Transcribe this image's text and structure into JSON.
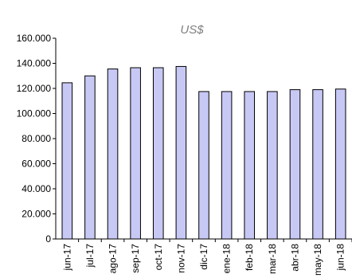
{
  "chart_data": {
    "type": "bar",
    "title": "US$",
    "xlabel": "",
    "ylabel": "",
    "categories": [
      "jun-17",
      "jul-17",
      "ago-17",
      "sep-17",
      "oct-17",
      "nov-17",
      "dic-17",
      "ene-18",
      "feb-18",
      "mar-18",
      "abr-18",
      "may-18",
      "jun-18"
    ],
    "values": [
      124500,
      130000,
      135500,
      136500,
      136500,
      137500,
      117500,
      117500,
      117500,
      117500,
      119000,
      119000,
      119500
    ],
    "ylim": [
      0,
      160000
    ],
    "yticks": [
      "0",
      "20.000",
      "40.000",
      "60.000",
      "80.000",
      "100.000",
      "120.000",
      "140.000",
      "160.000"
    ],
    "grid": false,
    "colors": {
      "bar_fill": "#c8c8f5",
      "bar_stroke": "#000000",
      "title": "#808080"
    }
  }
}
